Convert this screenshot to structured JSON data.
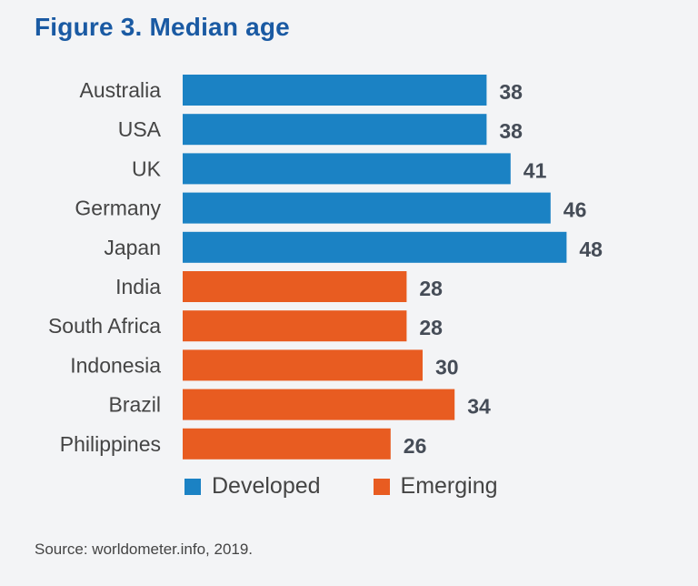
{
  "figure": {
    "title": "Figure 3. Median age",
    "source": "Source: worldometer.info, 2019."
  },
  "legend": {
    "developed": {
      "label": "Developed",
      "color": "#1b82c4"
    },
    "emerging": {
      "label": "Emerging",
      "color": "#e85c21"
    }
  },
  "chart_data": {
    "type": "bar",
    "orientation": "horizontal",
    "title": "Figure 3. Median age",
    "categories": [
      "Australia",
      "USA",
      "UK",
      "Germany",
      "Japan",
      "India",
      "South Africa",
      "Indonesia",
      "Brazil",
      "Philippines"
    ],
    "values": [
      38,
      38,
      41,
      46,
      48,
      28,
      28,
      30,
      34,
      26
    ],
    "groups": [
      "Developed",
      "Developed",
      "Developed",
      "Developed",
      "Developed",
      "Emerging",
      "Emerging",
      "Emerging",
      "Emerging",
      "Emerging"
    ],
    "group_colors": {
      "Developed": "#1b82c4",
      "Emerging": "#e85c21"
    },
    "xlim": [
      0,
      48
    ],
    "grid": false,
    "legend_position": "bottom",
    "data_labels": true
  }
}
